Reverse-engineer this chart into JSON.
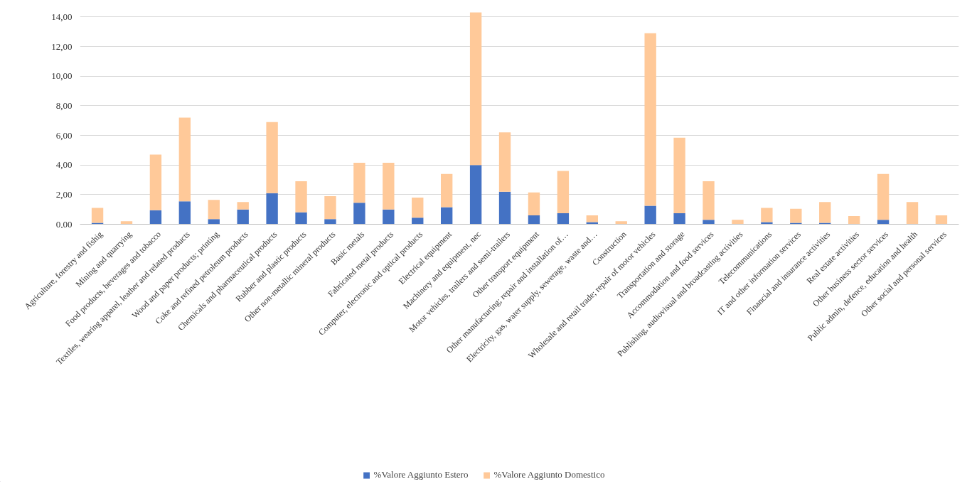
{
  "chart_data": {
    "type": "bar",
    "stacked": true,
    "categories": [
      "Agriculture, forestry and fishig",
      "Mining and quarrying",
      "Food products, beverages and tobacco",
      "Textiles, wearing apparel, leather and related products",
      "Wood and paper products; printing",
      "Coke and refined petroleum products",
      "Chemicals and pharmaceutical products",
      "Rubber and plastic products",
      "Other non-metallic mineral products",
      "Basic metals",
      "Fabricated metal products",
      "Computer, electronic and optical products",
      "Electrical equipment",
      "Machinery and equipment, nec",
      "Motor vehicles, trailers and semi-trailers",
      "Other transport equipment",
      "Other manufacturing; repair and installation of…",
      "Electricity, gas, water supply, sewerage, waste and…",
      "Construction",
      "Wholesale and retail trade; repair of motor vehicles",
      "Transportation and storage",
      "Accommodation and food services",
      "Publishing, audiovisual and broadcasting activities",
      "Telecommunications",
      "IT and other information services",
      "Financial and insurance activities",
      "Real estate activities",
      "Other business sector services",
      "Public admin, defence, education and health",
      "Other social and personal services"
    ],
    "series": [
      {
        "name": "%Valore Aggiunto Estero",
        "color": "#4472c4",
        "values": [
          0.1,
          null,
          0.95,
          1.55,
          0.35,
          1.0,
          2.1,
          0.8,
          0.35,
          1.45,
          1.0,
          0.45,
          1.15,
          4.0,
          2.2,
          0.6,
          0.75,
          0.15,
          null,
          1.25,
          0.75,
          0.3,
          null,
          0.15,
          0.1,
          0.1,
          null,
          0.3,
          null,
          null
        ]
      },
      {
        "name": "%Valore Aggiunto Domestico",
        "color": "#ffc999",
        "values": [
          1.0,
          0.2,
          3.75,
          5.65,
          1.3,
          0.5,
          4.8,
          2.1,
          1.55,
          2.7,
          3.15,
          1.35,
          2.25,
          10.3,
          4.0,
          1.55,
          2.85,
          0.45,
          0.2,
          11.65,
          5.1,
          2.6,
          0.3,
          0.95,
          0.95,
          1.4,
          0.55,
          3.1,
          1.5,
          0.6
        ]
      }
    ],
    "ylim": [
      0,
      14.4
    ],
    "yticks": [
      {
        "value": 0,
        "label": "0,00"
      },
      {
        "value": 2,
        "label": "2,00"
      },
      {
        "value": 4,
        "label": "4,00"
      },
      {
        "value": 6,
        "label": "6,00"
      },
      {
        "value": 8,
        "label": "8,00"
      },
      {
        "value": 10,
        "label": "10,00"
      },
      {
        "value": 12,
        "label": "12,00"
      },
      {
        "value": 14,
        "label": "14,00"
      }
    ],
    "grid": "y",
    "legend": "bottom"
  }
}
